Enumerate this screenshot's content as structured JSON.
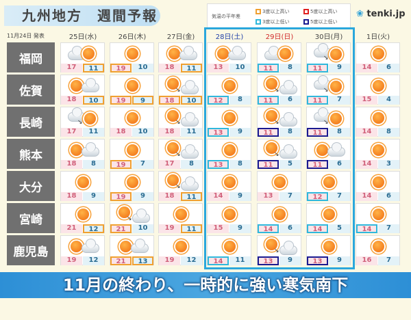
{
  "title": "九州地方　週間予報",
  "legend": {
    "label": "気温の平年差",
    "items": [
      {
        "text": "3度以上高い",
        "color": "#f0a030"
      },
      {
        "text": "5度以上高い",
        "color": "#e02020"
      },
      {
        "text": "3度以上低い",
        "color": "#2fb8dc"
      },
      {
        "text": "5度以上低い",
        "color": "#1a1a90"
      }
    ]
  },
  "logo": "tenki.jp",
  "published": "11月24日 発表",
  "days": [
    {
      "label": "25日(水)",
      "color": "#444"
    },
    {
      "label": "26日(木)",
      "color": "#444"
    },
    {
      "label": "27日(金)",
      "color": "#444"
    },
    {
      "label": "28日(土)",
      "color": "#1f3fa8"
    },
    {
      "label": "29日(日)",
      "color": "#d02828"
    },
    {
      "label": "30日(月)",
      "color": "#444"
    },
    {
      "label": "1日(火)",
      "color": "#444"
    }
  ],
  "rows": [
    {
      "city": "福岡",
      "f": [
        [
          "cloud-sun",
          17,
          11,
          "",
          "h3"
        ],
        [
          "sun",
          19,
          10,
          "h3",
          ""
        ],
        [
          "sun-cloud",
          18,
          11,
          "",
          "h3"
        ],
        [
          "sun-cloud",
          13,
          10,
          "",
          ""
        ],
        [
          "cloud-sun",
          11,
          8,
          "l3",
          ""
        ],
        [
          "cloud-then-sun",
          11,
          9,
          "l3",
          ""
        ],
        [
          "sun",
          14,
          6,
          "",
          ""
        ]
      ]
    },
    {
      "city": "佐賀",
      "f": [
        [
          "sun-cloud",
          18,
          10,
          "",
          "h3"
        ],
        [
          "sun",
          19,
          9,
          "h3",
          "h3"
        ],
        [
          "sun-then-cloud",
          18,
          10,
          "h3",
          "h3"
        ],
        [
          "sun",
          12,
          8,
          "l3",
          ""
        ],
        [
          "sun-then-cloud",
          11,
          6,
          "l3",
          ""
        ],
        [
          "cloud-then-sun",
          11,
          7,
          "l3",
          ""
        ],
        [
          "sun",
          15,
          4,
          "",
          ""
        ]
      ]
    },
    {
      "city": "長崎",
      "f": [
        [
          "cloud-then-sun",
          17,
          11,
          "",
          ""
        ],
        [
          "sun",
          18,
          10,
          "",
          ""
        ],
        [
          "sun-then-cloud",
          18,
          11,
          "",
          ""
        ],
        [
          "sun",
          13,
          9,
          "l3",
          ""
        ],
        [
          "sun-then-cloud",
          11,
          8,
          "l5",
          ""
        ],
        [
          "cloud-then-sun",
          11,
          8,
          "l5",
          ""
        ],
        [
          "sun",
          14,
          8,
          "",
          ""
        ]
      ]
    },
    {
      "city": "熊本",
      "f": [
        [
          "sun-cloud",
          18,
          8,
          "",
          ""
        ],
        [
          "sun",
          19,
          7,
          "h3",
          ""
        ],
        [
          "sun-then-cloud",
          17,
          8,
          "",
          ""
        ],
        [
          "sun",
          13,
          8,
          "l3",
          ""
        ],
        [
          "sun-then-cloud",
          11,
          5,
          "l5",
          ""
        ],
        [
          "sun-cloud",
          11,
          6,
          "l5",
          ""
        ],
        [
          "sun",
          14,
          3,
          "",
          ""
        ]
      ]
    },
    {
      "city": "大分",
      "f": [
        [
          "sun",
          18,
          9,
          "",
          ""
        ],
        [
          "sun",
          19,
          9,
          "h3",
          ""
        ],
        [
          "sun-then-cloud",
          18,
          11,
          "",
          "h3"
        ],
        [
          "sun",
          14,
          9,
          "",
          ""
        ],
        [
          "sun",
          13,
          7,
          "",
          ""
        ],
        [
          "sun",
          12,
          7,
          "l3",
          ""
        ],
        [
          "sun",
          14,
          6,
          "",
          ""
        ]
      ]
    },
    {
      "city": "宮崎",
      "f": [
        [
          "sun",
          21,
          12,
          "",
          "h3"
        ],
        [
          "sun-then-cloud",
          21,
          10,
          "h3",
          ""
        ],
        [
          "sun",
          19,
          11,
          "",
          "h3"
        ],
        [
          "sun",
          15,
          9,
          "",
          ""
        ],
        [
          "sun",
          14,
          6,
          "l3",
          ""
        ],
        [
          "sun",
          14,
          5,
          "l3",
          ""
        ],
        [
          "sun",
          14,
          7,
          "l3",
          ""
        ]
      ]
    },
    {
      "city": "鹿児島",
      "f": [
        [
          "sun-cloud",
          19,
          12,
          "",
          ""
        ],
        [
          "sun-cloud",
          21,
          13,
          "h3",
          "h3"
        ],
        [
          "sun",
          19,
          12,
          "",
          ""
        ],
        [
          "sun",
          14,
          11,
          "l3",
          ""
        ],
        [
          "sun-then-cloud",
          13,
          9,
          "l5",
          ""
        ],
        [
          "sun",
          13,
          9,
          "l5",
          ""
        ],
        [
          "sun",
          16,
          7,
          "",
          ""
        ]
      ]
    }
  ],
  "banner": "11月の終わり、一時的に強い寒気南下"
}
